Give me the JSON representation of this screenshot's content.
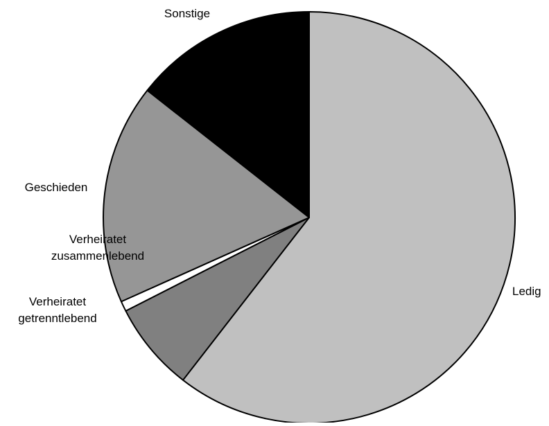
{
  "chart_data": {
    "type": "pie",
    "start": "12 o'clock",
    "direction": "clockwise",
    "slices": [
      {
        "label": "Ledig",
        "value": 60.5,
        "color": "#c0c0c0"
      },
      {
        "label": "Verheiratet zusammenlebend",
        "value": 7.0,
        "color": "#808080"
      },
      {
        "label": "Verheiratet getrenntlebend",
        "value": 0.8,
        "color": "#ffffff"
      },
      {
        "label": "Geschieden",
        "value": 17.3,
        "color": "#969696"
      },
      {
        "label": "Sonstige",
        "value": 14.4,
        "color": "#000000"
      }
    ],
    "labels": [
      {
        "lines": [
          "Ledig"
        ]
      },
      {
        "lines": [
          "Verheiratet",
          "zusammenlebend"
        ]
      },
      {
        "lines": [
          "Verheiratet",
          "getrenntlebend"
        ]
      },
      {
        "lines": [
          "Geschieden"
        ]
      },
      {
        "lines": [
          "Sonstige"
        ]
      }
    ]
  }
}
